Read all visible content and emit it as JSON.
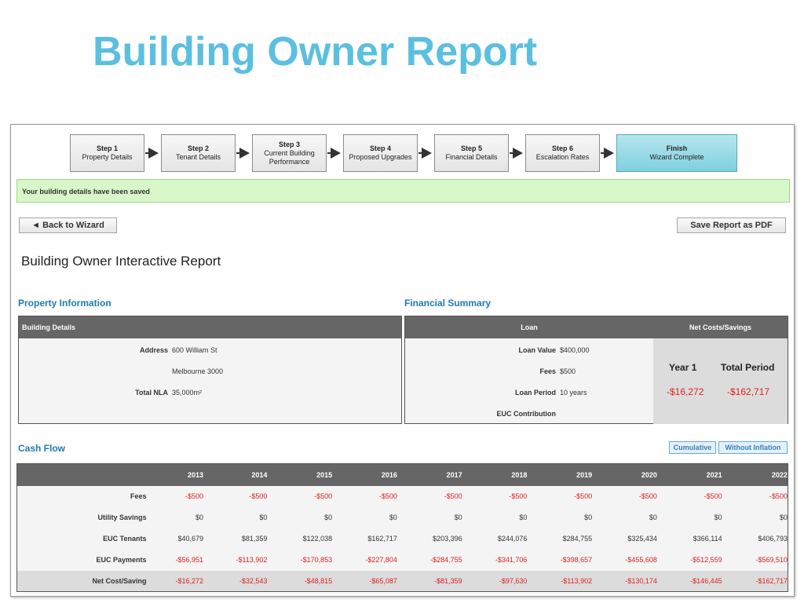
{
  "title": "Building Owner Report",
  "wizard": {
    "steps": [
      {
        "step": "Step 1",
        "name": "Property Details"
      },
      {
        "step": "Step 2",
        "name": "Tenant Details"
      },
      {
        "step": "Step 3",
        "name": "Current Building Performance"
      },
      {
        "step": "Step 4",
        "name": "Proposed Upgrades"
      },
      {
        "step": "Step 5",
        "name": "Financial Details"
      },
      {
        "step": "Step 6",
        "name": "Escalation Rates"
      }
    ],
    "finish": {
      "step": "Finish",
      "name": "Wizard Complete"
    }
  },
  "notice": "Your building details have been saved",
  "buttons": {
    "back": "◄ Back to Wizard",
    "save_pdf": "Save Report as PDF"
  },
  "report_title": "Building Owner Interactive Report",
  "property": {
    "section_title": "Property Information",
    "panel_header": "Building Details",
    "address_label": "Address",
    "address_line1": "600 William St",
    "address_line2": "Melbourne 3000",
    "nla_label": "Total NLA",
    "nla_value": "35,000m²"
  },
  "financial": {
    "section_title": "Financial Summary",
    "loan_header": "Loan",
    "net_header": "Net Costs/Savings",
    "loan_value_label": "Loan Value",
    "loan_value": "$400,000",
    "fees_label": "Fees",
    "fees": "$500",
    "loan_period_label": "Loan Period",
    "loan_period": "10 years",
    "euc_label": "EUC Contribution",
    "year1_label": "Year 1",
    "total_label": "Total Period",
    "year1_value": "-$16,272",
    "total_value": "-$162,717"
  },
  "cashflow": {
    "section_title": "Cash Flow",
    "toggles": [
      "Cumulative",
      "Without Inflation"
    ],
    "years": [
      "2013",
      "2014",
      "2015",
      "2016",
      "2017",
      "2018",
      "2019",
      "2020",
      "2021",
      "2022"
    ],
    "rows": [
      {
        "label": "Fees",
        "negative": true,
        "values": [
          "-$500",
          "-$500",
          "-$500",
          "-$500",
          "-$500",
          "-$500",
          "-$500",
          "-$500",
          "-$500",
          "-$500"
        ]
      },
      {
        "label": "Utility Savings",
        "negative": false,
        "values": [
          "$0",
          "$0",
          "$0",
          "$0",
          "$0",
          "$0",
          "$0",
          "$0",
          "$0",
          "$0"
        ]
      },
      {
        "label": "EUC Tenants",
        "negative": false,
        "values": [
          "$40,679",
          "$81,359",
          "$122,038",
          "$162,717",
          "$203,396",
          "$244,076",
          "$284,755",
          "$325,434",
          "$366,114",
          "$406,793"
        ]
      },
      {
        "label": "EUC Payments",
        "negative": true,
        "values": [
          "-$56,951",
          "-$113,902",
          "-$170,853",
          "-$227,804",
          "-$284,755",
          "-$341,706",
          "-$398,657",
          "-$455,608",
          "-$512,559",
          "-$569,510"
        ]
      },
      {
        "label": "Net Cost/Saving",
        "negative": true,
        "total": true,
        "values": [
          "-$16,272",
          "-$32,543",
          "-$48,815",
          "-$65,087",
          "-$81,359",
          "-$97,630",
          "-$113,902",
          "-$130,174",
          "-$146,445",
          "-$162,717"
        ]
      }
    ]
  },
  "colors": {
    "title": "#5bbfe0",
    "section": "#1f7bb0",
    "negative": "#e02020",
    "header_bg": "#666666",
    "finish_bg": "#7fd0de",
    "notice_bg": "#d8f7c8"
  }
}
